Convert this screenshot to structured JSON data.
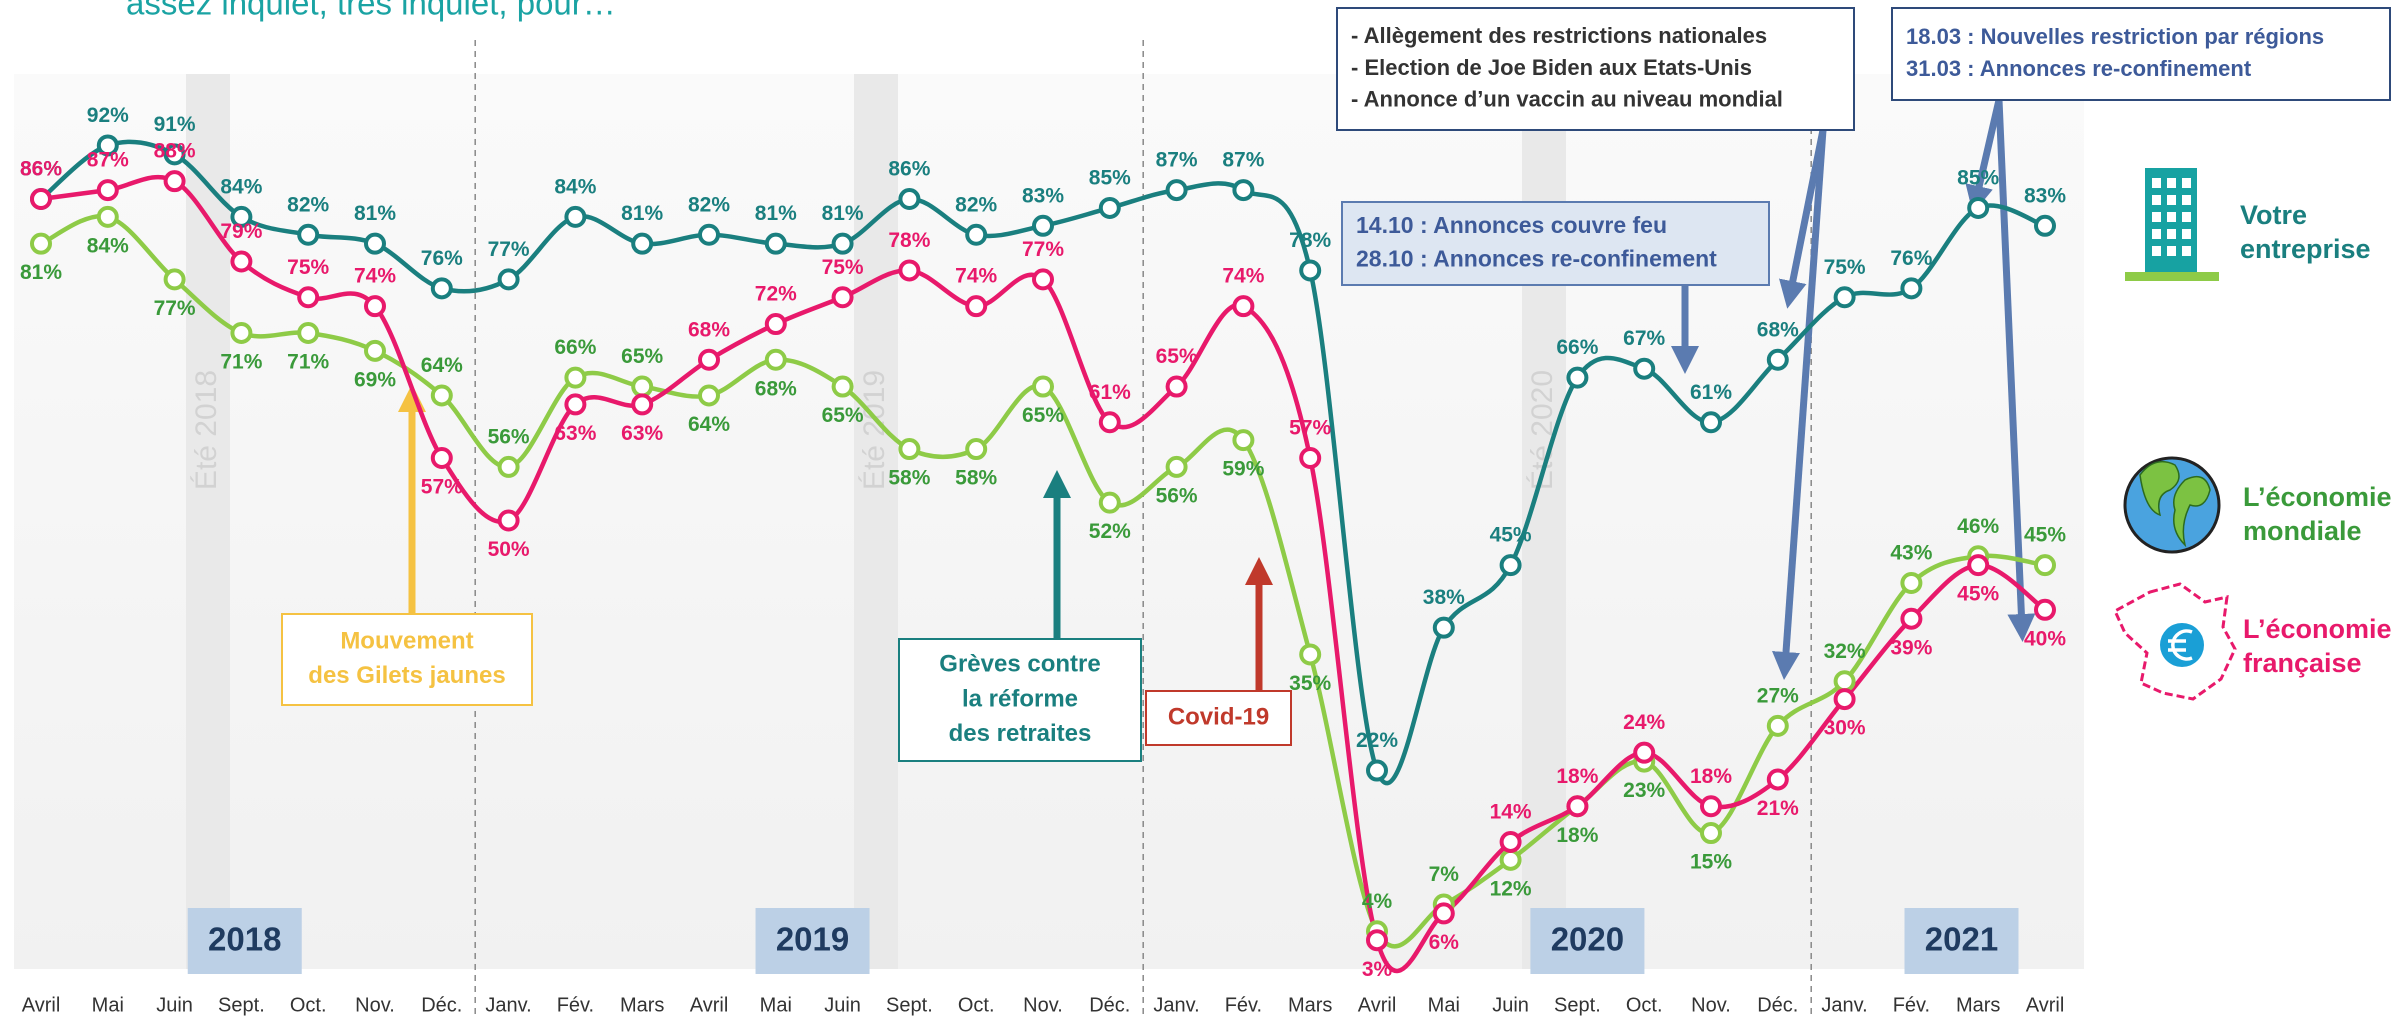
{
  "chart_data": {
    "type": "line",
    "subtitle": "assez inquiet, très inquiet, pour…",
    "categories": [
      "Avril",
      "Mai",
      "Juin",
      "Sept.",
      "Oct.",
      "Nov.",
      "Déc.",
      "Janv.",
      "Fév.",
      "Mars",
      "Avril",
      "Mai",
      "Juin",
      "Sept.",
      "Oct.",
      "Nov.",
      "Déc.",
      "Janv.",
      "Fév.",
      "Mars",
      "Avril",
      "Mai",
      "Juin",
      "Sept.",
      "Oct.",
      "Nov.",
      "Déc.",
      "Janv.",
      "Fév.",
      "Mars",
      "Avril"
    ],
    "series": [
      {
        "name": "Votre entreprise",
        "color": "#1a7f7f",
        "values": [
          86,
          92,
          91,
          84,
          82,
          81,
          76,
          77,
          84,
          81,
          82,
          81,
          81,
          86,
          82,
          83,
          85,
          87,
          87,
          78,
          22,
          38,
          45,
          66,
          67,
          61,
          68,
          75,
          76,
          85,
          83
        ],
        "value_labels": [
          "86%",
          "92%",
          "91%",
          "84%",
          "82%",
          "81%",
          "76%",
          "77%",
          "84%",
          "81%",
          "82%",
          "81%",
          "81%",
          "86%",
          "82%",
          "83%",
          "85%",
          "87%",
          "87%",
          "78%",
          "22%",
          "38%",
          "45%",
          "66%",
          "67%",
          "61%",
          "68%",
          "75%",
          "76%",
          "85%",
          "83%"
        ]
      },
      {
        "name": "L’économie mondiale",
        "color": "#8ecb47",
        "values": [
          81,
          84,
          77,
          71,
          71,
          69,
          64,
          56,
          66,
          65,
          64,
          68,
          65,
          58,
          58,
          65,
          52,
          56,
          59,
          35,
          4,
          7,
          12,
          18,
          23,
          15,
          27,
          32,
          43,
          46,
          45
        ],
        "value_labels": [
          "81%",
          "84%",
          "77%",
          "71%",
          "71%",
          "69%",
          "64%",
          "56%",
          "66%",
          "65%",
          "64%",
          "68%",
          "65%",
          "58%",
          "58%",
          "65%",
          "52%",
          "56%",
          "59%",
          "35%",
          "4%",
          "7%",
          "12%",
          "18%",
          "23%",
          "15%",
          "27%",
          "32%",
          "43%",
          "46%",
          "45%"
        ]
      },
      {
        "name": "L’économie française",
        "color": "#e8196b",
        "values": [
          86,
          87,
          88,
          79,
          75,
          74,
          57,
          50,
          63,
          63,
          68,
          72,
          75,
          78,
          74,
          77,
          61,
          65,
          74,
          57,
          3,
          6,
          14,
          18,
          24,
          18,
          21,
          30,
          39,
          45,
          40
        ],
        "value_labels": [
          "86%",
          "87%",
          "88%",
          "79%",
          "75%",
          "74%",
          "57%",
          "50%",
          "63%",
          "63%",
          "68%",
          "72%",
          "75%",
          "78%",
          "74%",
          "77%",
          "61%",
          "65%",
          "74%",
          "57%",
          "3%",
          "6%",
          "14%",
          "18%",
          "24%",
          "18%",
          "21%",
          "30%",
          "39%",
          "45%",
          "40%"
        ]
      }
    ],
    "ylim": [
      0,
      100
    ],
    "year_labels": [
      "2018",
      "2019",
      "2020",
      "2021"
    ],
    "season_labels": [
      "Été 2018",
      "Été 2019",
      "Été 2020"
    ],
    "annotations": [
      {
        "lines": [
          "Mouvement",
          "des Gilets jaunes"
        ]
      },
      {
        "lines": [
          "Grèves contre",
          "la réforme",
          "des retraites"
        ]
      },
      {
        "lines": [
          "Covid-19"
        ]
      },
      {
        "lines": [
          "14.10 : Annonces couvre feu",
          "28.10 : Annonces re-confinement"
        ]
      },
      {
        "lines": [
          "- Allègement des restrictions nationales",
          "- Election de Joe Biden aux Etats-Unis",
          "- Annonce d’un vaccin au niveau mondial"
        ]
      },
      {
        "lines": [
          "18.03 : Nouvelles restriction par régions",
          "31.03 : Annonces re-confinement"
        ]
      }
    ]
  }
}
